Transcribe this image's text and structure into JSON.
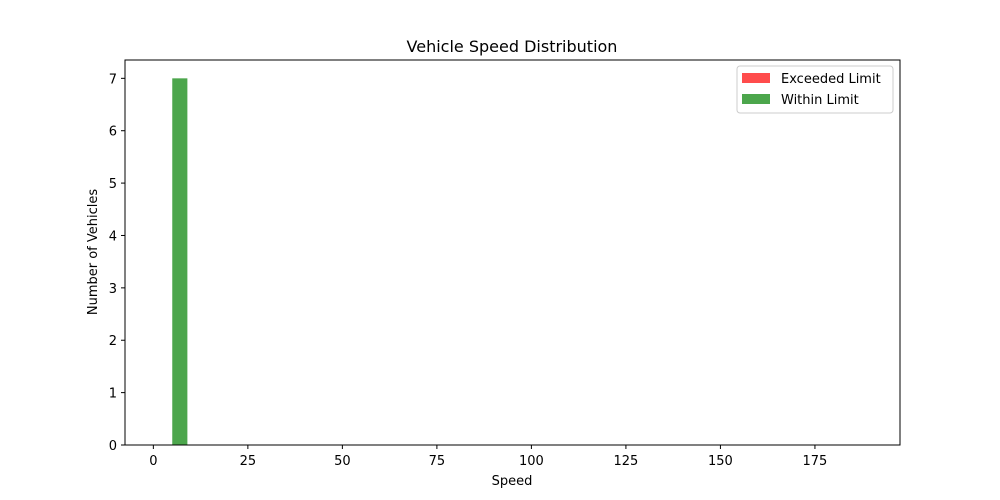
{
  "chart_data": {
    "type": "bar",
    "title": "Vehicle Speed Distribution",
    "xlabel": "Speed",
    "ylabel": "Number of Vehicles",
    "xlim": [
      -7.5,
      197.5
    ],
    "ylim": [
      0,
      7.35
    ],
    "xticks": [
      0,
      25,
      50,
      75,
      100,
      125,
      150,
      175
    ],
    "yticks": [
      0,
      1,
      2,
      3,
      4,
      5,
      6,
      7
    ],
    "grid": false,
    "legend_position": "top-right",
    "series": [
      {
        "name": "Exceeded Limit",
        "color": "#ff4c4c",
        "bars": []
      },
      {
        "name": "Within Limit",
        "color": "#4ca64c",
        "bars": [
          {
            "x0": 5,
            "x1": 9,
            "value": 7
          }
        ]
      }
    ]
  }
}
